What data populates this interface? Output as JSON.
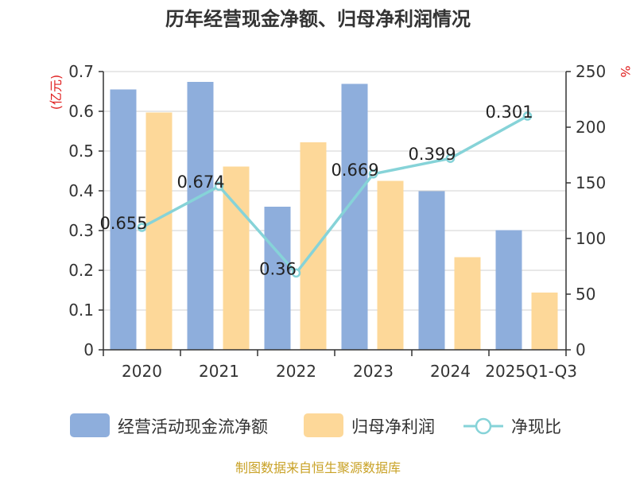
{
  "chart_data": {
    "type": "bar",
    "title": "历年经营现金净额、归母净利润情况",
    "categories": [
      "2020",
      "2021",
      "2022",
      "2023",
      "2024",
      "2025Q1-Q3"
    ],
    "y_left_unit": "(亿元)",
    "y_right_unit": "%",
    "ylim_left": [
      0,
      0.7
    ],
    "ylim_right": [
      0,
      250
    ],
    "yticks_left": [
      "0",
      "0.1",
      "0.2",
      "0.3",
      "0.4",
      "0.5",
      "0.6",
      "0.7"
    ],
    "yticks_right": [
      "0",
      "50",
      "100",
      "150",
      "200",
      "250"
    ],
    "series": [
      {
        "name": "经营活动现金流净额",
        "axis": "left",
        "kind": "bar",
        "values": [
          0.655,
          0.674,
          0.36,
          0.669,
          0.399,
          0.301
        ],
        "labels": [
          "0.655",
          "0.674",
          "0.36",
          "0.669",
          "0.399",
          "0.301"
        ]
      },
      {
        "name": "归母净利润",
        "axis": "left",
        "kind": "bar",
        "values": [
          0.597,
          0.461,
          0.522,
          0.425,
          0.233,
          0.144
        ]
      },
      {
        "name": "净现比",
        "axis": "right",
        "kind": "line",
        "values": [
          110,
          147,
          69,
          158,
          172,
          210
        ]
      }
    ],
    "colors": {
      "cash": "#8eaedc",
      "profit": "#fdd899",
      "ratio": "#86d3d8",
      "source": "#c9a227",
      "unit": "#e02020"
    }
  },
  "source": "制图数据来自恒生聚源数据库"
}
